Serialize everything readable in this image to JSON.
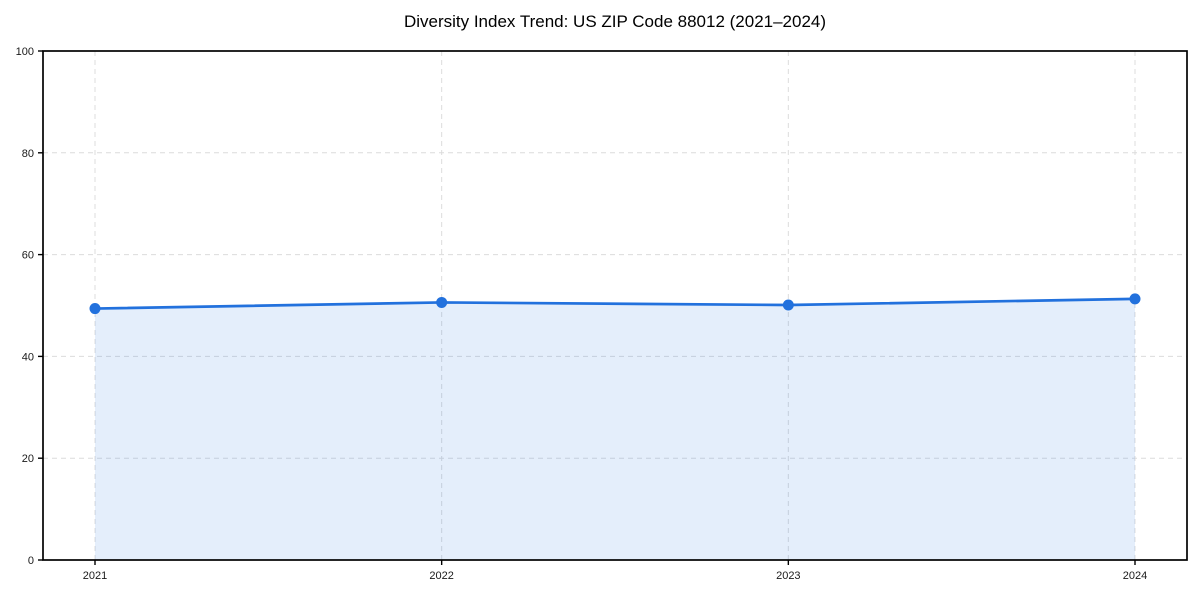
{
  "figure": {
    "background": "#ffffff"
  },
  "chart_data": {
    "type": "area",
    "title": "Diversity Index Trend: US ZIP Code 88012 (2021–2024)",
    "categories": [
      "2021",
      "2022",
      "2023",
      "2024"
    ],
    "series": [
      {
        "name": "Diversity Index",
        "values": [
          49.4,
          50.6,
          50.1,
          51.3
        ]
      }
    ],
    "xlabel": "",
    "ylabel": "",
    "ylim": [
      0,
      100
    ],
    "yticks": [
      0,
      20,
      40,
      60,
      80,
      100
    ],
    "grid": {
      "show": true,
      "style": "dashed",
      "color": "#dcdcdc"
    },
    "legend": {
      "show": false
    },
    "marker": "circle",
    "line_color": "#2271dd",
    "marker_color": "#2271dd",
    "fill_color": "#2271dd",
    "fill_opacity": 0.12,
    "axis_color": "#000000",
    "tick_label_color": "#1a1a1a",
    "title_color": "#000000"
  }
}
